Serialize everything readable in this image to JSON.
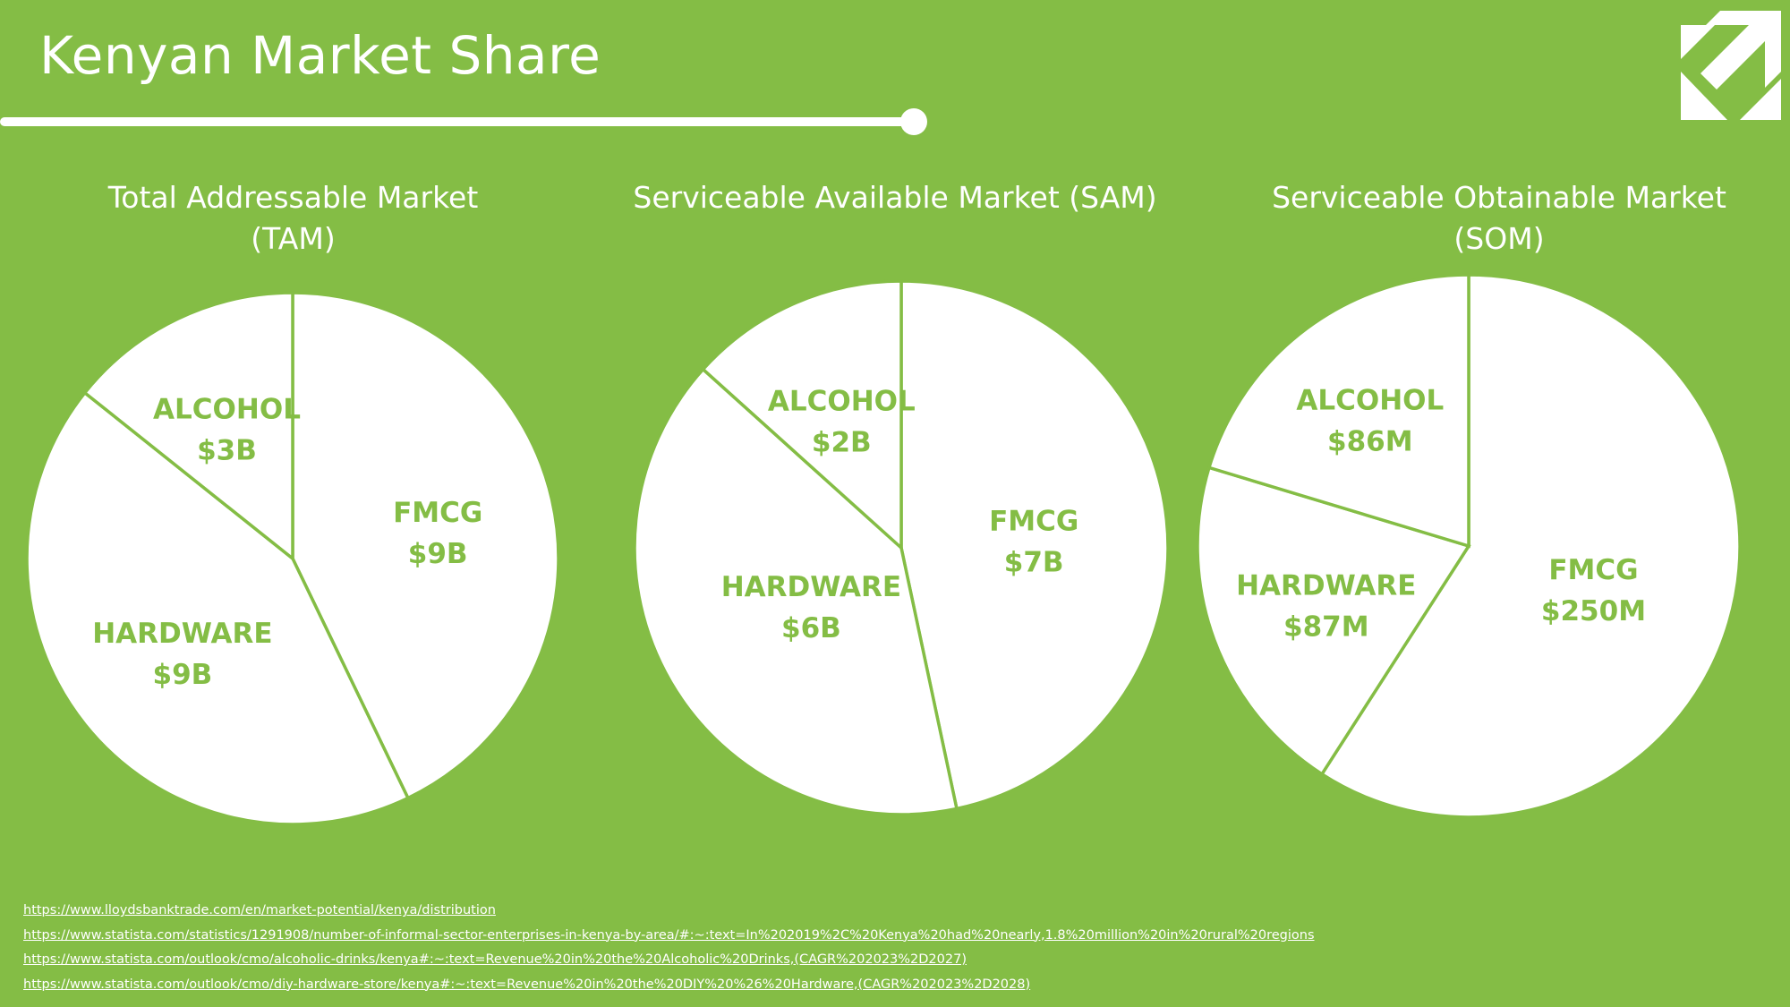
{
  "slide": {
    "title": "Kenyan Market Share"
  },
  "colors": {
    "background": "#84bd45",
    "slice": "#ffffff",
    "label": "#84bd45",
    "accent": "#ffffff"
  },
  "logo": {
    "icon": "arrow-logo-icon"
  },
  "chart_data": [
    {
      "type": "pie",
      "title": "Total Addressable Market (TAM)",
      "title_lines": [
        "Total Addressable Market",
        "(TAM)"
      ],
      "unit": "USD",
      "slices": [
        {
          "label": "FMCG",
          "value_label": "$9B",
          "value": 9000000000
        },
        {
          "label": "HARDWARE",
          "value_label": "$9B",
          "value": 9000000000
        },
        {
          "label": "ALCOHOL",
          "value_label": "$3B",
          "value": 3000000000
        }
      ]
    },
    {
      "type": "pie",
      "title": "Serviceable Available Market (SAM)",
      "title_lines": [
        "Serviceable Available Market (SAM)"
      ],
      "unit": "USD",
      "slices": [
        {
          "label": "FMCG",
          "value_label": "$7B",
          "value": 7000000000
        },
        {
          "label": "HARDWARE",
          "value_label": "$6B",
          "value": 6000000000
        },
        {
          "label": "ALCOHOL",
          "value_label": "$2B",
          "value": 2000000000
        }
      ]
    },
    {
      "type": "pie",
      "title": "Serviceable Obtainable Market (SOM)",
      "title_lines": [
        "Serviceable Obtainable Market (SOM)"
      ],
      "unit": "USD",
      "slices": [
        {
          "label": "FMCG",
          "value_label": "$250M",
          "value": 250000000
        },
        {
          "label": "HARDWARE",
          "value_label": "$87M",
          "value": 87000000
        },
        {
          "label": "ALCOHOL",
          "value_label": "$86M",
          "value": 86000000
        }
      ]
    }
  ],
  "sources": [
    "https://www.lloydsbanktrade.com/en/market-potential/kenya/distribution",
    "https://www.statista.com/statistics/1291908/number-of-informal-sector-enterprises-in-kenya-by-area/#:~:text=In%202019%2C%20Kenya%20had%20nearly,1.8%20million%20in%20rural%20regions",
    "https://www.statista.com/outlook/cmo/alcoholic-drinks/kenya#:~:text=Revenue%20in%20the%20Alcoholic%20Drinks,(CAGR%202023%2D2027)",
    "https://www.statista.com/outlook/cmo/diy-hardware-store/kenya#:~:text=Revenue%20in%20the%20DIY%20%26%20Hardware,(CAGR%202023%2D2028)"
  ]
}
